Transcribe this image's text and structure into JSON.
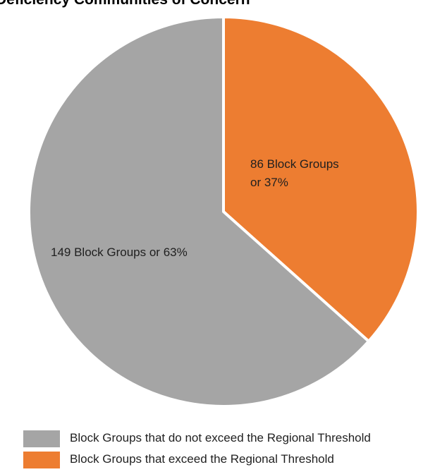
{
  "chart_data": {
    "type": "pie",
    "title": "Deficiency Communities of Concern",
    "slices": [
      {
        "label": "Block Groups that exceed the Regional Threshold",
        "value": 86,
        "percent": 37,
        "color": "#ED7D31",
        "data_label_line1": "86 Block Groups",
        "data_label_line2": "or 37%"
      },
      {
        "label": "Block Groups that do not exceed the Regional Threshold",
        "value": 149,
        "percent": 63,
        "color": "#A5A5A5",
        "data_label_line1": "149 Block Groups or 63%",
        "data_label_line2": ""
      }
    ],
    "legend": [
      {
        "label": "Block Groups that do not exceed the Regional Threshold",
        "color": "#A5A5A5"
      },
      {
        "label": "Block Groups that exceed the Regional Threshold",
        "color": "#ED7D31"
      }
    ],
    "legend_position": "bottom"
  }
}
